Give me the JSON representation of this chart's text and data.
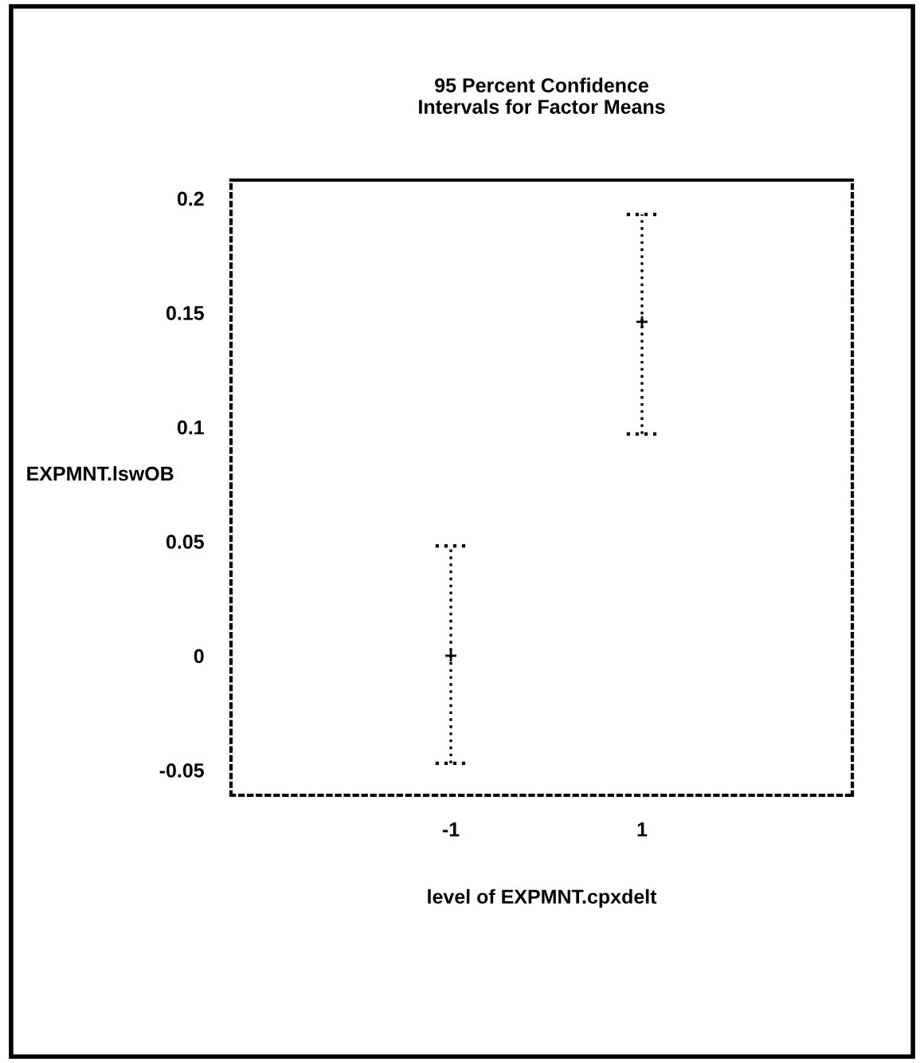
{
  "chart_data": {
    "type": "scatter",
    "title": "95 Percent Confidence\nIntervals for Factor Means",
    "xlabel": "level of EXPMNT.cpxdelt",
    "ylabel": "EXPMNT.lswOB",
    "categories": [
      "-1",
      "1"
    ],
    "values": [
      0,
      0.146
    ],
    "errors": [
      [
        -0.047,
        0.048
      ],
      [
        0.097,
        0.193
      ]
    ],
    "color": "#000000",
    "marker": "cross",
    "line_style": "dotted",
    "ylim": [
      -0.061,
      0.208
    ],
    "yticks": [
      -0.05,
      0,
      0.05,
      0.1,
      0.15,
      0.2
    ],
    "grid": false
  }
}
